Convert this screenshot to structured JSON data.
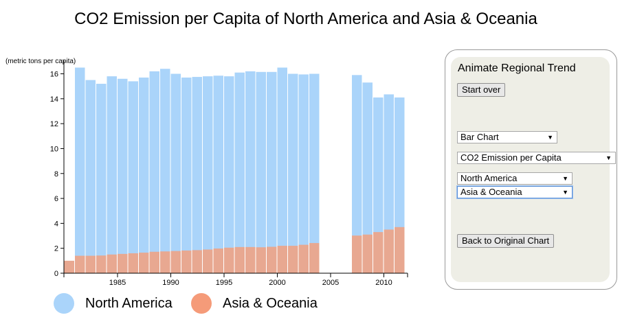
{
  "page": {
    "title": "CO2 Emission per Capita of North America and Asia & Oceania",
    "units_label": "(metric tons per capita)"
  },
  "legend": [
    {
      "label": "North America",
      "color": "#aad4fa"
    },
    {
      "label": "Asia & Oceania",
      "color": "#f59b79"
    }
  ],
  "controls": {
    "heading": "Animate Regional Trend",
    "start_over_label": "Start over",
    "chart_type_select": "Bar Chart",
    "metric_select": "CO2 Emission per Capita",
    "region1_select": "North America",
    "region2_select": "Asia & Oceania",
    "back_button_label": "Back to Original Chart"
  },
  "chart_data": {
    "type": "bar",
    "xlim": [
      1980,
      2012
    ],
    "ylim": [
      0,
      16
    ],
    "y_ticks": [
      0,
      2,
      4,
      6,
      8,
      10,
      12,
      14,
      16
    ],
    "x_ticks": [
      1985,
      1990,
      1995,
      2000,
      2005,
      2010
    ],
    "colors": {
      "north_america": "#aad4fa",
      "asia_oceania": "#e8a891"
    },
    "series": [
      {
        "name": "North America",
        "x": [
          1981,
          1982,
          1983,
          1984,
          1985,
          1986,
          1987,
          1988,
          1989,
          1990,
          1991,
          1992,
          1993,
          1994,
          1995,
          1996,
          1997,
          1998,
          1999,
          2000,
          2001,
          2002,
          2003,
          2007,
          2008,
          2009,
          2010,
          2011
        ],
        "values": [
          16.5,
          15.5,
          15.2,
          15.8,
          15.6,
          15.4,
          15.7,
          16.2,
          16.4,
          16.0,
          15.7,
          15.75,
          15.8,
          15.85,
          15.8,
          16.1,
          16.2,
          16.15,
          16.15,
          16.5,
          16.0,
          15.95,
          16.0,
          15.9,
          15.3,
          14.1,
          14.35,
          14.1
        ]
      },
      {
        "name": "Asia & Oceania",
        "x": [
          1980,
          1981,
          1982,
          1983,
          1984,
          1985,
          1986,
          1987,
          1988,
          1989,
          1990,
          1991,
          1992,
          1993,
          1994,
          1995,
          1996,
          1997,
          1998,
          1999,
          2000,
          2001,
          2002,
          2003,
          2007,
          2008,
          2009,
          2010,
          2011
        ],
        "values": [
          1.0,
          1.4,
          1.4,
          1.42,
          1.5,
          1.55,
          1.6,
          1.65,
          1.72,
          1.75,
          1.78,
          1.82,
          1.85,
          1.9,
          1.98,
          2.05,
          2.1,
          2.1,
          2.08,
          2.12,
          2.2,
          2.2,
          2.28,
          2.42,
          3.02,
          3.1,
          3.3,
          3.5,
          3.7
        ]
      }
    ]
  }
}
